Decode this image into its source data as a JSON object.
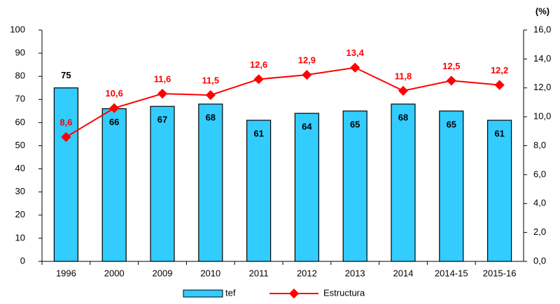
{
  "chart_data": {
    "type": "bar",
    "categories": [
      "1996",
      "2000",
      "2009",
      "2010",
      "2011",
      "2012",
      "2013",
      "2014",
      "2014-15",
      "2015-16"
    ],
    "series": [
      {
        "name": "tef",
        "type": "bar",
        "color": "#33ccff",
        "values": [
          75,
          66,
          67,
          68,
          61,
          64,
          65,
          68,
          65,
          61
        ]
      },
      {
        "name": "Estructura",
        "type": "line",
        "axis": "y2",
        "color": "#ff0000",
        "values": [
          8.6,
          10.6,
          11.6,
          11.5,
          12.6,
          12.9,
          13.4,
          11.8,
          12.5,
          12.2
        ],
        "value_labels": [
          "8,6",
          "10,6",
          "11,6",
          "11,5",
          "12,6",
          "12,9",
          "13,4",
          "11,8",
          "12,5",
          "12,2"
        ]
      }
    ],
    "ylim": [
      0,
      100
    ],
    "yticks": [
      0,
      10,
      20,
      30,
      40,
      50,
      60,
      70,
      80,
      90,
      100
    ],
    "y2label": "(%)",
    "y2lim": [
      0,
      16
    ],
    "y2ticks": [
      {
        "value": 0,
        "label": "0,0"
      },
      {
        "value": 2,
        "label": "2,0"
      },
      {
        "value": 4,
        "label": "4,0"
      },
      {
        "value": 6,
        "label": "6,0"
      },
      {
        "value": 8,
        "label": "8,0"
      },
      {
        "value": 10,
        "label": "10,0"
      },
      {
        "value": 12,
        "label": "12,0"
      },
      {
        "value": 14,
        "label": "14,0"
      },
      {
        "value": 16,
        "label": "16,0"
      }
    ],
    "legend": "bottom",
    "grid": false
  }
}
